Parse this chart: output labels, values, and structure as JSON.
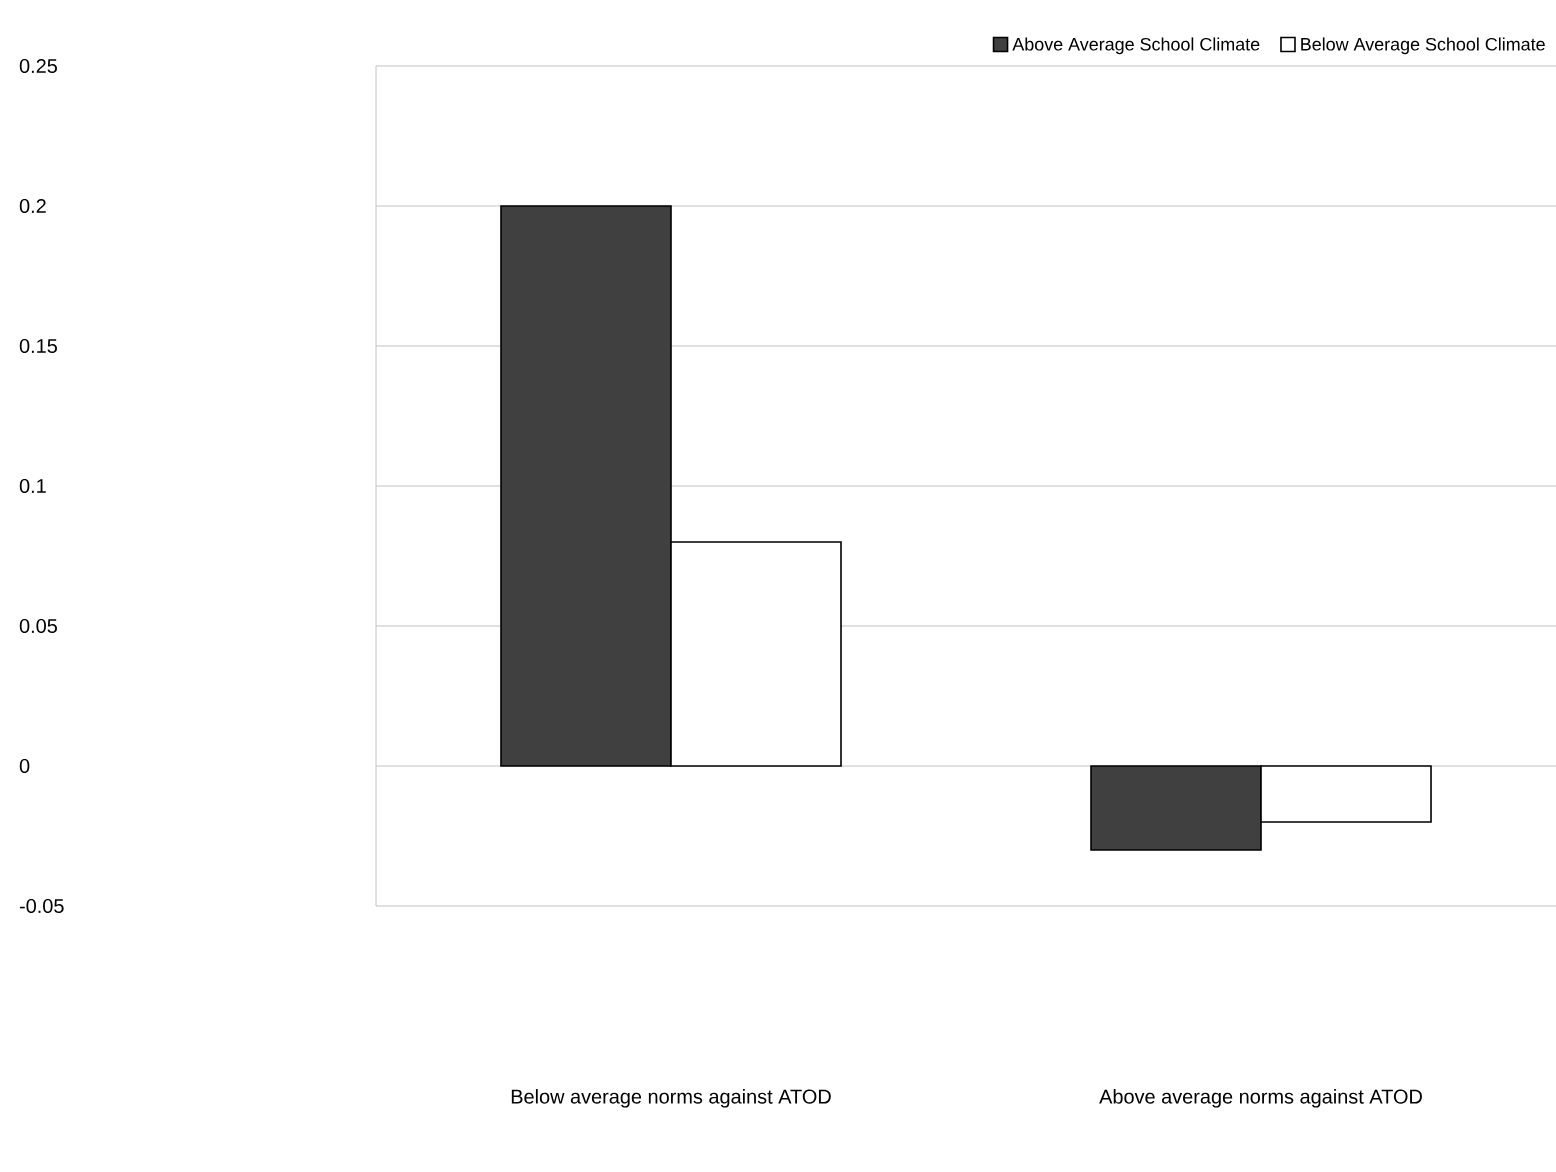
{
  "chart_data": {
    "type": "bar",
    "categories": [
      "Below average norms against ATOD",
      "Above average norms against ATOD"
    ],
    "series": [
      {
        "name": "Above Average School Climate",
        "color": "#404040",
        "values": [
          0.2,
          -0.03
        ]
      },
      {
        "name": "Below Average School Climate",
        "color": "#ffffff",
        "values": [
          0.08,
          -0.02
        ]
      }
    ],
    "ylim": [
      -0.05,
      0.25
    ],
    "yticks": [
      -0.05,
      0,
      0.05,
      0.1,
      0.15,
      0.2,
      0.25
    ],
    "grid": "y",
    "legend": "top right"
  }
}
